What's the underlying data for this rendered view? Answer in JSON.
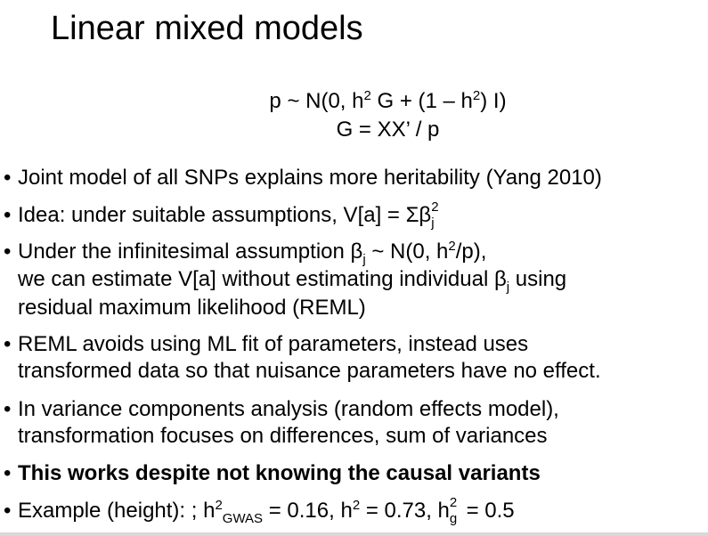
{
  "title": "Linear mixed models",
  "equations": {
    "line1": {
      "a": "p ~ N(0, h",
      "a_sup": "2",
      "b": " G + (1 – h",
      "b_sup": "2",
      "c": ") I)"
    },
    "line2": "G = XX’ / p"
  },
  "bullet_glyph": "•",
  "bullets": {
    "b1": "Joint model of all SNPs explains more heritability (Yang 2010)",
    "b2": {
      "a": "Idea: under suitable assumptions, V[a] = Σβ",
      "sup": "2",
      "sub": "j"
    },
    "b3": {
      "l1a": "Under the infinitesimal assumption β",
      "l1sub": "j",
      "l1b": " ~ N(0, h",
      "l1sup": "2",
      "l1c": "/p),",
      "l2a": "we can estimate V[a] without estimating individual β",
      "l2sub": "j",
      "l2b": " using",
      "l3": "residual maximum likelihood (REML)"
    },
    "b4": {
      "l1": "REML avoids using ML fit of parameters, instead uses",
      "l2": "transformed data so that nuisance parameters have no effect."
    },
    "b5": {
      "l1": "In variance components analysis (random effects model),",
      "l2": "transformation focuses on differences, sum of variances"
    },
    "b6": "This works despite not knowing the causal variants",
    "b7": {
      "a": "Example (height): ; h",
      "sup1": "2",
      "sub1": "GWAS",
      "b": " = 0.16, h",
      "sup2": "2",
      "c": " = 0.73, h",
      "sup3": "2",
      "sub3": "g",
      "d": " = 0.5"
    }
  }
}
